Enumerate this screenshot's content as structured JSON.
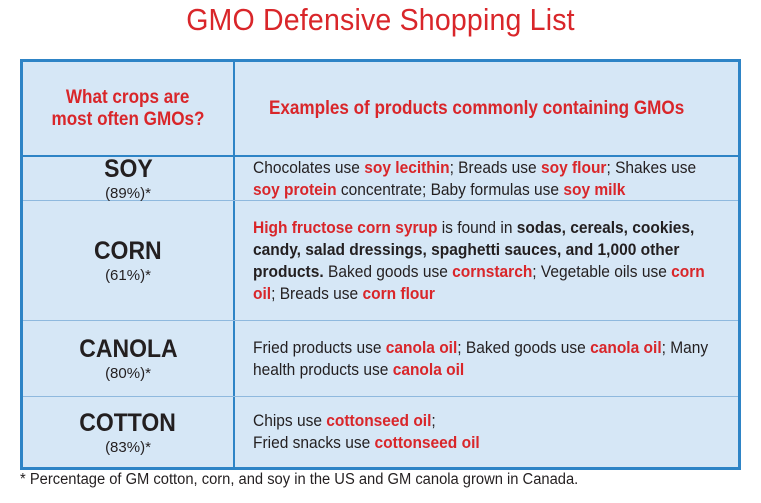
{
  "title": "GMO Defensive Shopping List",
  "header": {
    "left_line1": "What crops are",
    "left_line2": "most often GMOs?",
    "right": "Examples of products commonly containing GMOs"
  },
  "rows": [
    {
      "crop": "SOY",
      "percent": "(89%)*",
      "segments": [
        {
          "t": "Chocolates use ",
          "s": "n"
        },
        {
          "t": "soy lecithin",
          "s": "h"
        },
        {
          "t": "; Breads use ",
          "s": "n"
        },
        {
          "t": "soy flour",
          "s": "h"
        },
        {
          "t": "; Shakes use ",
          "s": "n"
        },
        {
          "t": "soy protein",
          "s": "h"
        },
        {
          "t": " concentrate; Baby formulas use ",
          "s": "n"
        },
        {
          "t": "soy milk",
          "s": "h"
        }
      ]
    },
    {
      "crop": "CORN",
      "percent": "(61%)*",
      "segments": [
        {
          "t": "High fructose corn syrup",
          "s": "h"
        },
        {
          "t": " is found in ",
          "s": "n"
        },
        {
          "t": "sodas, cereals, cookies, candy, salad dressings, spaghetti sauces, and 1,000 other products.",
          "s": "b"
        },
        {
          "t": " Baked goods use ",
          "s": "n"
        },
        {
          "t": "cornstarch",
          "s": "h"
        },
        {
          "t": "; Vegetable oils use ",
          "s": "n"
        },
        {
          "t": "corn oil",
          "s": "h"
        },
        {
          "t": "; Breads use ",
          "s": "n"
        },
        {
          "t": "corn flour",
          "s": "h"
        }
      ]
    },
    {
      "crop": "CANOLA",
      "percent": "(80%)*",
      "segments": [
        {
          "t": "Fried products use ",
          "s": "n"
        },
        {
          "t": "canola oil",
          "s": "h"
        },
        {
          "t": "; Baked goods use ",
          "s": "n"
        },
        {
          "t": "canola oil",
          "s": "h"
        },
        {
          "t": "; Many health products use ",
          "s": "n"
        },
        {
          "t": "canola oil",
          "s": "h"
        }
      ]
    },
    {
      "crop": "COTTON",
      "percent": "(83%)*",
      "segments": [
        {
          "t": "Chips use ",
          "s": "n"
        },
        {
          "t": "cottonseed oil",
          "s": "h"
        },
        {
          "t": ";",
          "s": "n"
        },
        {
          "t": "\n",
          "s": "br"
        },
        {
          "t": "Fried snacks use ",
          "s": "n"
        },
        {
          "t": "cottonseed oil",
          "s": "h"
        }
      ]
    }
  ],
  "footnote": "* Percentage of GM cotton, corn, and soy in the US and GM canola grown in Canada.",
  "colors": {
    "accent_red": "#d9262a",
    "border_blue": "#2e84c6",
    "cell_bg": "#d6e7f6"
  }
}
